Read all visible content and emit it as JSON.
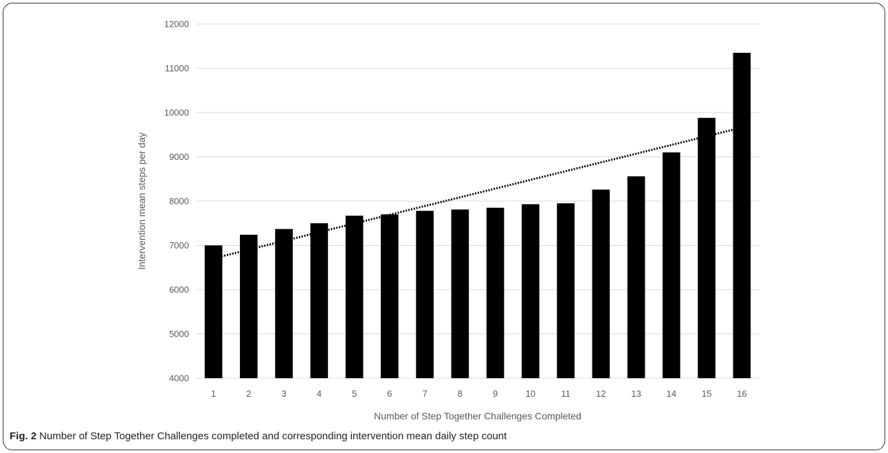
{
  "caption": {
    "fig_label": "Fig. 2",
    "text": "Number of Step Together Challenges completed and corresponding intervention mean daily step count"
  },
  "chart_data": {
    "type": "bar",
    "xlabel": "Number of Step Together Challenges Completed",
    "ylabel": "Intervention mean steps per day",
    "categories": [
      "1",
      "2",
      "3",
      "4",
      "5",
      "6",
      "7",
      "8",
      "9",
      "10",
      "11",
      "12",
      "13",
      "14",
      "15",
      "16"
    ],
    "values": [
      7000,
      7240,
      7370,
      7500,
      7670,
      7700,
      7780,
      7810,
      7850,
      7930,
      7950,
      8260,
      8560,
      9100,
      9880,
      11350
    ],
    "ylim": [
      4000,
      12000
    ],
    "yticks": [
      4000,
      5000,
      6000,
      7000,
      8000,
      9000,
      10000,
      11000,
      12000
    ],
    "bar_color": "#000000",
    "grid": true,
    "grid_color": "#d9d9d9",
    "trendline": {
      "type": "linear",
      "style": "dotted",
      "color": "#000000"
    }
  }
}
